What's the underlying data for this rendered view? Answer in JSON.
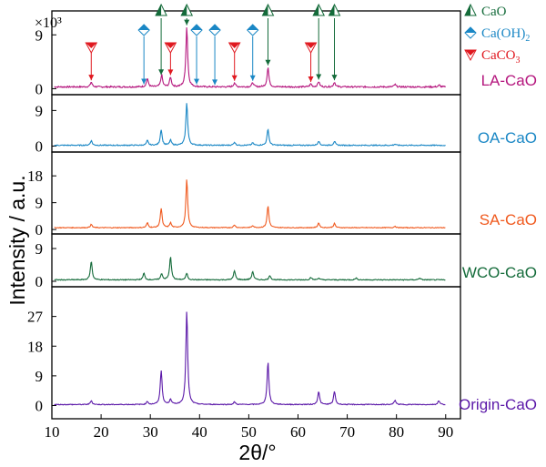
{
  "chart_data": {
    "type": "line",
    "xlabel": "2θ/°",
    "ylabel": "Intensity / a.u.",
    "y_scale_note": "×10³",
    "xlim": [
      10,
      93
    ],
    "x_ticks": [
      "10",
      "20",
      "30",
      "40",
      "50",
      "60",
      "70",
      "80",
      "90"
    ],
    "panels": [
      {
        "name": "LA-CaO",
        "color": "#b5177e",
        "ylim": [
          -1,
          13
        ],
        "yticks": [
          0,
          9
        ],
        "baseline": 0.3,
        "peaks": [
          [
            18.0,
            0.8
          ],
          [
            29.4,
            1.4
          ],
          [
            32.3,
            2.0
          ],
          [
            34.1,
            1.6
          ],
          [
            37.4,
            10.0
          ],
          [
            47.1,
            0.7
          ],
          [
            50.8,
            0.7
          ],
          [
            53.9,
            3.3
          ],
          [
            62.6,
            0.5
          ],
          [
            64.2,
            0.9
          ],
          [
            67.4,
            0.8
          ],
          [
            79.7,
            0.4
          ],
          [
            88.7,
            0.3
          ]
        ]
      },
      {
        "name": "OA-CaO",
        "color": "#1a87c5",
        "ylim": [
          -1.5,
          13
        ],
        "yticks": [
          0,
          9
        ],
        "baseline": 0.2,
        "peaks": [
          [
            18.0,
            1.2
          ],
          [
            29.4,
            1.2
          ],
          [
            32.2,
            4.0
          ],
          [
            34.1,
            1.3
          ],
          [
            37.4,
            10.8
          ],
          [
            47.1,
            0.8
          ],
          [
            50.8,
            0.6
          ],
          [
            53.9,
            4.2
          ],
          [
            64.2,
            1.1
          ],
          [
            67.4,
            1.0
          ],
          [
            79.7,
            0.3
          ]
        ]
      },
      {
        "name": "SA-CaO",
        "color": "#f05a1f",
        "ylim": [
          -1.5,
          26
        ],
        "yticks": [
          0,
          9,
          18
        ],
        "baseline": 0.6,
        "peaks": [
          [
            18.0,
            1.1
          ],
          [
            29.4,
            1.6
          ],
          [
            32.2,
            6.5
          ],
          [
            34.1,
            1.6
          ],
          [
            37.4,
            16.2
          ],
          [
            47.1,
            0.9
          ],
          [
            50.8,
            0.7
          ],
          [
            53.9,
            7.4
          ],
          [
            64.2,
            1.6
          ],
          [
            67.4,
            1.4
          ],
          [
            79.7,
            0.5
          ]
        ]
      },
      {
        "name": "WCO-CaO",
        "color": "#146b3a",
        "ylim": [
          -1.5,
          13
        ],
        "yticks": [
          0,
          9
        ],
        "baseline": 0.4,
        "peaks": [
          [
            18.0,
            5.1
          ],
          [
            28.7,
            1.8
          ],
          [
            32.3,
            1.7
          ],
          [
            34.1,
            6.3
          ],
          [
            37.4,
            1.8
          ],
          [
            47.1,
            2.5
          ],
          [
            50.8,
            2.3
          ],
          [
            54.3,
            1.2
          ],
          [
            62.6,
            0.7
          ],
          [
            64.2,
            0.5
          ],
          [
            71.8,
            0.5
          ],
          [
            84.7,
            0.5
          ]
        ]
      },
      {
        "name": "Origin-CaO",
        "color": "#5b18a8",
        "ylim": [
          -4,
          36
        ],
        "yticks": [
          0,
          9,
          18,
          27
        ],
        "baseline": 0.3,
        "peaks": [
          [
            18.0,
            1.2
          ],
          [
            29.4,
            0.9
          ],
          [
            32.2,
            10.4
          ],
          [
            34.1,
            1.6
          ],
          [
            37.4,
            28.3
          ],
          [
            47.1,
            0.8
          ],
          [
            53.9,
            13.0
          ],
          [
            64.2,
            4.0
          ],
          [
            67.4,
            4.0
          ],
          [
            79.7,
            1.3
          ],
          [
            88.6,
            1.2
          ]
        ]
      }
    ],
    "legend": [
      {
        "label": "CaO",
        "sub": "",
        "color": "#146b3a",
        "marker": "cao-triangle-marker"
      },
      {
        "label": "Ca(OH)",
        "sub": "2",
        "color": "#1a87c5",
        "marker": "caoh2-diamond-marker"
      },
      {
        "label": "CaCO",
        "sub": "3",
        "color": "#e0181f",
        "marker": "caco3-triangle-marker"
      }
    ],
    "phase_markers": {
      "CaO": [
        32.2,
        37.4,
        53.9,
        64.2,
        67.4
      ],
      "Ca(OH)2": [
        28.7,
        39.4,
        43.1,
        50.8
      ],
      "CaCO3": [
        18.0,
        34.1,
        47.1,
        62.6
      ]
    }
  }
}
